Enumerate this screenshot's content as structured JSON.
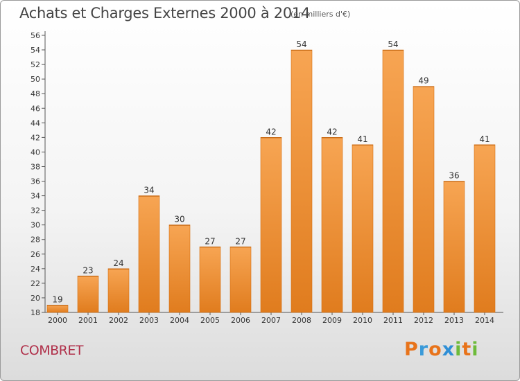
{
  "header": {
    "title": "Achats et Charges Externes 2000 à 2014",
    "subtitle": "(en milliers d'€)"
  },
  "footer": {
    "commune": "COMBRET",
    "logo": "Proxiti"
  },
  "colors": {
    "bar_light": "#f7a553",
    "bar_dark": "#e07c1e",
    "commune": "#b0304a",
    "logo_letters": [
      "#e8731a",
      "#3a9ad9",
      "#e8731a",
      "#2f8fd6",
      "#6dbb3a",
      "#e8731a",
      "#6dbb3a"
    ]
  },
  "chart_data": {
    "type": "bar",
    "title": "Achats et Charges Externes 2000 à 2014",
    "subtitle": "(en milliers d'€)",
    "categories": [
      "2000",
      "2001",
      "2002",
      "2003",
      "2004",
      "2005",
      "2006",
      "2007",
      "2008",
      "2009",
      "2010",
      "2011",
      "2012",
      "2013",
      "2014"
    ],
    "values": [
      19,
      23,
      24,
      34,
      30,
      27,
      27,
      42,
      54,
      42,
      41,
      54,
      49,
      36,
      41
    ],
    "ylim": [
      18,
      56
    ],
    "yticks": [
      18,
      20,
      22,
      24,
      26,
      28,
      30,
      32,
      34,
      36,
      38,
      40,
      42,
      44,
      46,
      48,
      50,
      52,
      54,
      56
    ],
    "grid": false,
    "data_labels": true
  }
}
